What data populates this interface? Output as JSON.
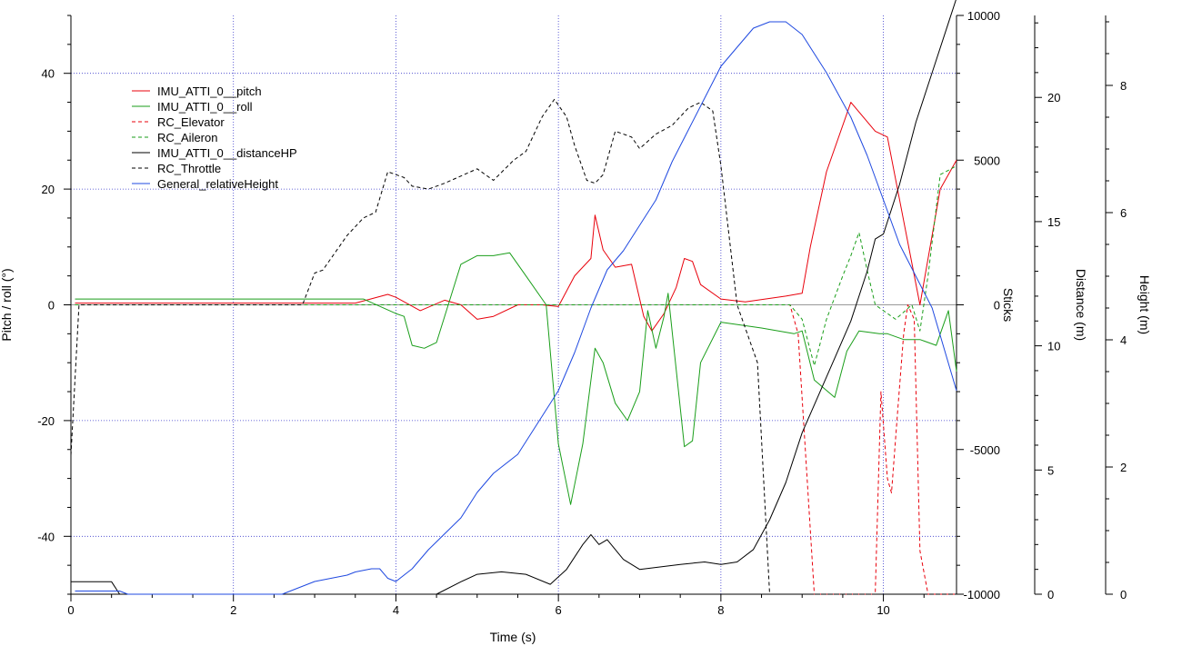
{
  "chart_data": {
    "type": "line",
    "xlabel": "Time (s)",
    "xlim": [
      0,
      10.9
    ],
    "xticks": [
      0,
      2,
      4,
      6,
      8,
      10
    ],
    "grid": true,
    "legend_placement": "top-left",
    "axes": {
      "pitch": {
        "label": "Pitch / roll (°)",
        "lim": [
          -50,
          50
        ],
        "ticks": [
          -40,
          -20,
          0,
          20,
          40
        ],
        "side": "left"
      },
      "sticks": {
        "label": "Sticks",
        "lim": [
          -10000,
          10000
        ],
        "ticks": [
          -10000,
          -5000,
          0,
          5000,
          10000
        ],
        "side": "right"
      },
      "distance": {
        "label": "Distance (m)",
        "lim": [
          0,
          23.3
        ],
        "ticks": [
          0,
          5,
          10,
          15,
          20
        ],
        "side": "right"
      },
      "height": {
        "label": "Height (m)",
        "lim": [
          0,
          9.1
        ],
        "ticks": [
          0,
          2,
          4,
          6,
          8
        ],
        "side": "right"
      }
    },
    "series": [
      {
        "name": "IMU_ATTI_0__pitch",
        "axis": "pitch",
        "color": "#e8000b",
        "dash": "solid",
        "x": [
          0.05,
          3.5,
          3.9,
          4.0,
          4.3,
          4.6,
          4.8,
          5.0,
          5.2,
          5.5,
          5.8,
          6.0,
          6.2,
          6.4,
          6.45,
          6.55,
          6.7,
          6.9,
          7.05,
          7.15,
          7.3,
          7.45,
          7.55,
          7.65,
          7.75,
          8.0,
          8.3,
          8.8,
          9.0,
          9.1,
          9.3,
          9.6,
          9.9,
          10.05,
          10.45,
          10.7,
          10.9
        ],
        "y": [
          0.3,
          0.3,
          1.8,
          1.3,
          -1,
          0.8,
          0,
          -2.5,
          -2,
          0,
          0,
          -0.3,
          5,
          8,
          15.5,
          9.5,
          6.5,
          7,
          -2,
          -4.5,
          -1.5,
          3,
          8,
          7.5,
          3.5,
          1,
          0.5,
          1.5,
          2,
          10,
          23,
          35,
          30,
          29,
          0,
          20,
          25
        ]
      },
      {
        "name": "IMU_ATTI_0__roll",
        "axis": "pitch",
        "color": "#1a9e1a",
        "dash": "solid",
        "x": [
          0.05,
          3.6,
          4.0,
          4.1,
          4.2,
          4.35,
          4.5,
          4.8,
          5.0,
          5.2,
          5.4,
          5.6,
          5.85,
          6.0,
          6.15,
          6.3,
          6.45,
          6.55,
          6.7,
          6.85,
          7.0,
          7.1,
          7.2,
          7.3,
          7.35,
          7.55,
          7.65,
          7.75,
          8.0,
          8.5,
          8.9,
          9.0,
          9.15,
          9.4,
          9.55,
          9.7,
          9.95,
          10.05,
          10.25,
          10.45,
          10.65,
          10.8,
          10.9
        ],
        "y": [
          1,
          1,
          -1.5,
          -2,
          -7,
          -7.5,
          -6.5,
          7,
          8.5,
          8.5,
          9,
          5,
          0,
          -24,
          -34.5,
          -24,
          -7.5,
          -10,
          -17,
          -20,
          -15,
          -1,
          -7.5,
          -2,
          2,
          -24.5,
          -23.5,
          -10,
          -3,
          -4,
          -5,
          -4.5,
          -13,
          -16,
          -8,
          -4.5,
          -5,
          -5,
          -6,
          -6,
          -7,
          -1,
          -11.5
        ]
      },
      {
        "name": "RC_Elevator",
        "axis": "sticks",
        "color": "#e8000b",
        "dash": "4,3",
        "x": [
          0.05,
          8.85,
          8.95,
          9.15,
          9.9,
          9.97,
          10.05,
          10.1,
          10.18,
          10.25,
          10.3,
          10.38,
          10.45,
          10.55,
          10.9
        ],
        "y": [
          0,
          0,
          -1000,
          -10000,
          -10000,
          -3000,
          -6000,
          -6500,
          -3500,
          -1000,
          0,
          -500,
          -8500,
          -10000,
          -10000
        ]
      },
      {
        "name": "RC_Aileron",
        "axis": "sticks",
        "color": "#1a9e1a",
        "dash": "4,3",
        "x": [
          0.05,
          8.85,
          9.0,
          9.15,
          9.3,
          9.5,
          9.6,
          9.7,
          9.8,
          9.9,
          10.0,
          10.15,
          10.35,
          10.45,
          10.55,
          10.7,
          10.9
        ],
        "y": [
          0,
          0,
          -500,
          -2100,
          -500,
          1000,
          1700,
          2500,
          1200,
          0,
          -200,
          -500,
          0,
          -900,
          1000,
          4500,
          4800
        ]
      },
      {
        "name": "IMU_ATTI_0__distanceHP",
        "axis": "distance",
        "color": "#000000",
        "dash": "solid",
        "x": [
          0,
          0.5,
          0.6,
          4.5,
          4.8,
          5.0,
          5.3,
          5.6,
          5.9,
          6.1,
          6.3,
          6.4,
          6.5,
          6.6,
          6.8,
          7.0,
          7.5,
          7.8,
          8.0,
          8.2,
          8.4,
          8.6,
          8.8,
          9.0,
          9.2,
          9.4,
          9.6,
          9.8,
          9.9,
          10.0,
          10.2,
          10.4,
          10.6,
          10.8,
          10.9
        ],
        "y": [
          0.5,
          0.5,
          0,
          0,
          0.5,
          0.8,
          0.9,
          0.8,
          0.4,
          1,
          2,
          2.4,
          2,
          2.2,
          1.4,
          1,
          1.2,
          1.3,
          1.2,
          1.3,
          1.8,
          3,
          4.5,
          6.5,
          8,
          9.5,
          11,
          13,
          14.3,
          14.5,
          16.5,
          19,
          21,
          23,
          24
        ]
      },
      {
        "name": "RC_Throttle",
        "axis": "sticks",
        "color": "#000000",
        "dash": "4,3",
        "x": [
          0,
          0.1,
          2.85,
          3.0,
          3.1,
          3.4,
          3.6,
          3.75,
          3.9,
          4.1,
          4.2,
          4.4,
          4.6,
          5.0,
          5.2,
          5.45,
          5.6,
          5.8,
          5.95,
          6.1,
          6.2,
          6.35,
          6.45,
          6.55,
          6.7,
          6.9,
          7.0,
          7.2,
          7.4,
          7.6,
          7.75,
          7.9,
          8.0,
          8.2,
          8.45,
          8.6,
          8.85,
          10.9
        ],
        "y": [
          -5200,
          0,
          0,
          1100,
          1200,
          2400,
          3000,
          3200,
          4600,
          4400,
          4100,
          4000,
          4200,
          4700,
          4300,
          5000,
          5300,
          6500,
          7100,
          6500,
          5500,
          4300,
          4200,
          4500,
          6000,
          5800,
          5400,
          5900,
          6200,
          6800,
          7000,
          6700,
          4800,
          0,
          -2000,
          -10000,
          -10000,
          -10000
        ]
      },
      {
        "name": "General_relativeHeight",
        "axis": "height",
        "color": "#1f49e0",
        "dash": "solid",
        "x": [
          0.05,
          0.6,
          0.7,
          2.6,
          2.8,
          3.0,
          3.2,
          3.4,
          3.5,
          3.7,
          3.8,
          3.9,
          4.0,
          4.2,
          4.4,
          4.8,
          5.0,
          5.2,
          5.5,
          5.8,
          6.0,
          6.2,
          6.4,
          6.6,
          6.8,
          7.0,
          7.2,
          7.4,
          7.6,
          7.8,
          8.0,
          8.2,
          8.4,
          8.6,
          8.8,
          9.0,
          9.3,
          9.6,
          9.8,
          10.0,
          10.2,
          10.6,
          10.9
        ],
        "y": [
          0.05,
          0.05,
          0,
          0,
          0.1,
          0.2,
          0.25,
          0.3,
          0.35,
          0.4,
          0.4,
          0.25,
          0.2,
          0.4,
          0.7,
          1.2,
          1.6,
          1.9,
          2.2,
          2.8,
          3.2,
          3.8,
          4.5,
          5.1,
          5.4,
          5.8,
          6.2,
          6.8,
          7.3,
          7.8,
          8.3,
          8.6,
          8.9,
          9.0,
          9.0,
          8.8,
          8.2,
          7.5,
          6.9,
          6.2,
          5.5,
          4.5,
          3.2
        ]
      }
    ]
  }
}
